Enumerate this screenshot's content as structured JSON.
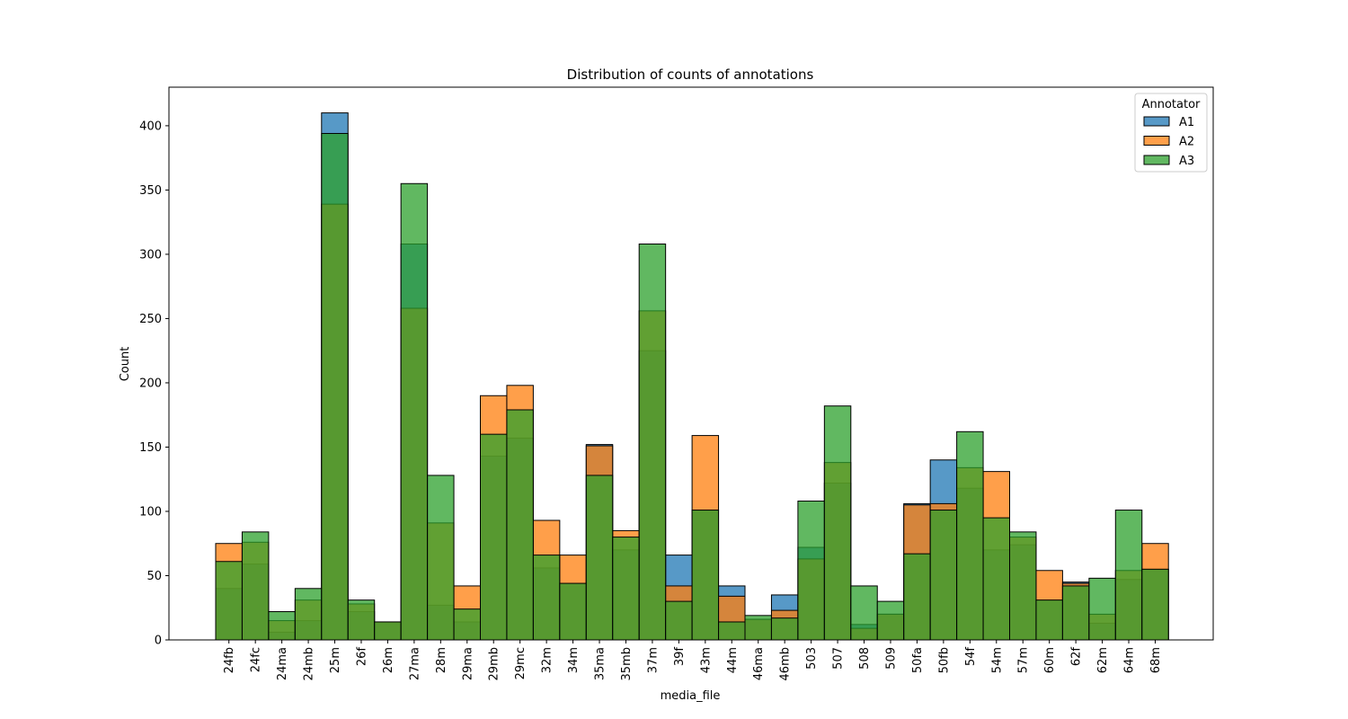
{
  "chart_data": {
    "type": "bar",
    "title": "Distribution of counts of annotations",
    "xlabel": "media_file",
    "ylabel": "Count",
    "ylim": [
      0,
      430
    ],
    "yticks": [
      0,
      50,
      100,
      150,
      200,
      250,
      300,
      350,
      400
    ],
    "grid": false,
    "legend": {
      "title": "Annotator",
      "position": "top-right"
    },
    "categories": [
      "24fb",
      "24fc",
      "24ma",
      "24mb",
      "25m",
      "26f",
      "26m",
      "27ma",
      "28m",
      "29ma",
      "29mb",
      "29mc",
      "32m",
      "34m",
      "35ma",
      "35mb",
      "37m",
      "39f",
      "43m",
      "44m",
      "46ma",
      "46mb",
      "503",
      "507",
      "508",
      "509",
      "50fa",
      "50fb",
      "54f",
      "54m",
      "57m",
      "60m",
      "62f",
      "62m",
      "64m",
      "68m"
    ],
    "series": [
      {
        "name": "A1",
        "color": "#1f77b4",
        "values": [
          40,
          59,
          6,
          15,
          410,
          22,
          14,
          308,
          27,
          14,
          143,
          157,
          56,
          44,
          152,
          70,
          225,
          66,
          101,
          42,
          16,
          35,
          72,
          122,
          12,
          20,
          106,
          140,
          118,
          70,
          74,
          31,
          45,
          13,
          47,
          55
        ]
      },
      {
        "name": "A2",
        "color": "#ff7f0e",
        "values": [
          75,
          76,
          15,
          31,
          339,
          28,
          14,
          258,
          91,
          42,
          190,
          198,
          93,
          66,
          151,
          85,
          256,
          42,
          159,
          34,
          16,
          23,
          63,
          138,
          9,
          20,
          105,
          106,
          134,
          131,
          80,
          54,
          44,
          20,
          54,
          75
        ]
      },
      {
        "name": "A3",
        "color": "#2ca02c",
        "values": [
          61,
          84,
          22,
          40,
          394,
          31,
          14,
          355,
          128,
          24,
          160,
          179,
          66,
          44,
          128,
          80,
          308,
          30,
          101,
          14,
          19,
          17,
          108,
          182,
          42,
          30,
          67,
          101,
          162,
          95,
          84,
          31,
          42,
          48,
          101,
          55
        ]
      }
    ]
  }
}
